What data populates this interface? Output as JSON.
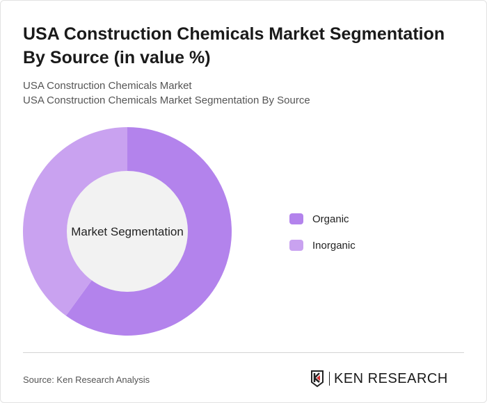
{
  "title": "USA Construction Chemicals Market Segmentation By Source (in value %)",
  "subtitle1": "USA Construction Chemicals Market",
  "subtitle2": "USA Construction Chemicals Market Segmentation By Source",
  "source": "Source: Ken Research Analysis",
  "logo_text": "KEN RESEARCH",
  "chart_data": {
    "type": "pie",
    "variant": "donut",
    "center_label": "Market Segmentation",
    "categories": [
      "Organic",
      "Inorganic"
    ],
    "values": [
      60,
      40
    ],
    "colors": [
      "#b383ec",
      "#c9a2f0"
    ],
    "legend_position": "right"
  }
}
